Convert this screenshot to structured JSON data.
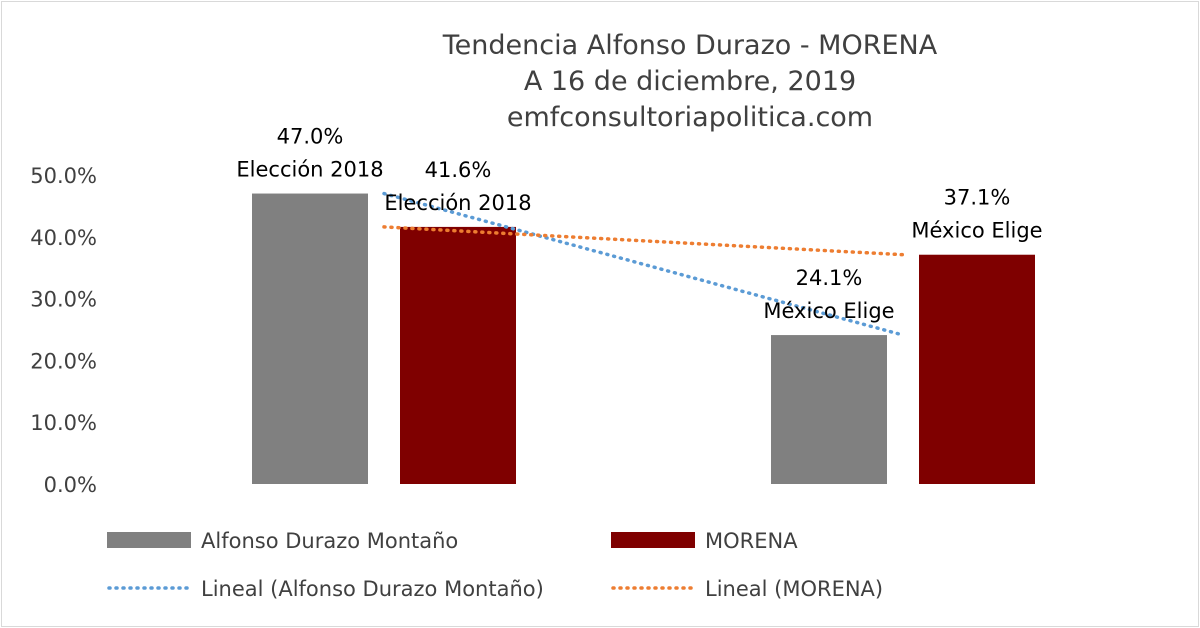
{
  "chart_data": {
    "type": "bar",
    "title_lines": [
      "Tendencia Alfonso Durazo - MORENA",
      "A 16 de diciembre, 2019",
      "emfconsultoriapolitica.com"
    ],
    "categories": [
      "Elección 2018",
      "México Elige"
    ],
    "series": [
      {
        "name": "Alfonso Durazo Montaño",
        "color": "#808080",
        "values": [
          47.0,
          24.1
        ],
        "labels": [
          "47.0%",
          "24.1%"
        ],
        "category_labels": [
          "Elección 2018",
          "México Elige"
        ]
      },
      {
        "name": "MORENA",
        "color": "#7f0000",
        "values": [
          41.6,
          37.1
        ],
        "labels": [
          "41.6%",
          "37.1%"
        ],
        "category_labels": [
          "Elección 2018",
          "México Elige"
        ]
      }
    ],
    "trendlines": [
      {
        "name": "Lineal (Alfonso Durazo Montaño)",
        "color": "#5b9bd5",
        "style": "dotted",
        "values": [
          47.0,
          24.1
        ]
      },
      {
        "name": "Lineal (MORENA)",
        "color": "#ed7d31",
        "style": "dotted",
        "values": [
          41.6,
          37.1
        ]
      }
    ],
    "yticks": [
      "0.0%",
      "10.0%",
      "20.0%",
      "30.0%",
      "40.0%",
      "50.0%"
    ],
    "ylim": [
      0,
      50
    ],
    "grid": false,
    "legend_position": "bottom",
    "xlabel": "",
    "ylabel": ""
  }
}
